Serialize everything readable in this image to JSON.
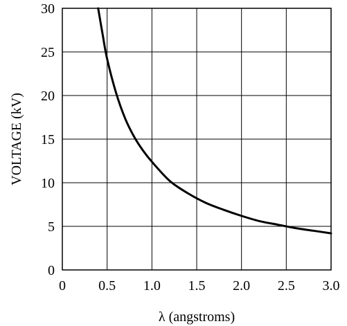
{
  "chart_data": {
    "type": "line",
    "title": "",
    "xlabel": "λ (angstroms)",
    "ylabel": "VOLTAGE (kV)",
    "xlim": [
      0,
      3.0
    ],
    "ylim": [
      0,
      30
    ],
    "grid": true,
    "x_ticks": [
      "0",
      "0.5",
      "1.0",
      "1.5",
      "2.0",
      "2.5",
      "3.0"
    ],
    "y_ticks": [
      "0",
      "5",
      "10",
      "15",
      "20",
      "25",
      "30"
    ],
    "series": [
      {
        "x": [
          0.4,
          0.45,
          0.5,
          0.6,
          0.7,
          0.8,
          0.9,
          1.0,
          1.2,
          1.4,
          1.6,
          1.8,
          2.0,
          2.2,
          2.4,
          2.6,
          2.8,
          3.0
        ],
        "y": [
          30.0,
          27.0,
          24.2,
          20.3,
          17.4,
          15.3,
          13.7,
          12.4,
          10.2,
          8.8,
          7.7,
          6.9,
          6.2,
          5.6,
          5.2,
          4.8,
          4.5,
          4.2
        ]
      }
    ]
  }
}
